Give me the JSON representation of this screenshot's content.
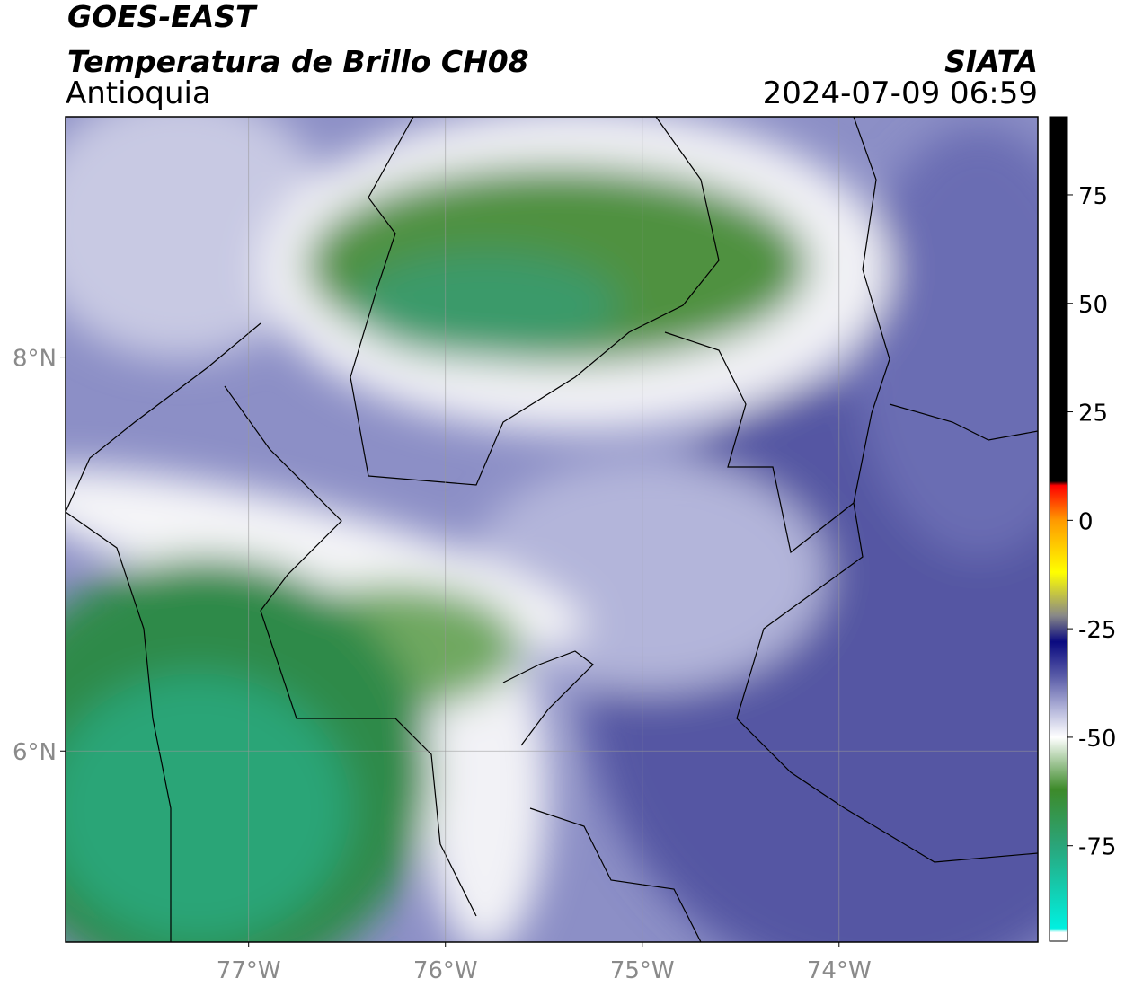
{
  "header": {
    "title": "GOES-EAST",
    "subtitle": "Temperatura de Brillo CH08",
    "region": "Antioquia",
    "source": "SIATA",
    "timestamp": "2024-07-09 06:59"
  },
  "map": {
    "xlim": [
      -77.93,
      -72.99
    ],
    "ylim": [
      5.03,
      9.22
    ],
    "xticks": [
      {
        "value": -77,
        "label": "77°W"
      },
      {
        "value": -76,
        "label": "76°W"
      },
      {
        "value": -75,
        "label": "75°W"
      },
      {
        "value": -74,
        "label": "74°W"
      }
    ],
    "yticks": [
      {
        "value": 6,
        "label": "6°N"
      },
      {
        "value": 8,
        "label": "8°N"
      }
    ],
    "grid": true
  },
  "colorbar": {
    "lim": [
      -97,
      93
    ],
    "ticks": [
      -75,
      -50,
      -25,
      0,
      25,
      50,
      75
    ],
    "stops": [
      {
        "value": -97,
        "color": "#ffffff"
      },
      {
        "value": -95,
        "color": "#ffffff"
      },
      {
        "value": -94,
        "color": "#00f0e0"
      },
      {
        "value": -75,
        "color": "#2aa57a"
      },
      {
        "value": -62,
        "color": "#3d8a2a"
      },
      {
        "value": -50,
        "color": "#ffffff"
      },
      {
        "value": -44,
        "color": "#b9bbdd"
      },
      {
        "value": -36,
        "color": "#5a5ca8"
      },
      {
        "value": -28,
        "color": "#0a0a80"
      },
      {
        "value": -22,
        "color": "#888888"
      },
      {
        "value": -12,
        "color": "#ffff00"
      },
      {
        "value": 0,
        "color": "#ff9900"
      },
      {
        "value": 8,
        "color": "#ff0000"
      },
      {
        "value": 9,
        "color": "#000000"
      },
      {
        "value": 93,
        "color": "#000000"
      }
    ]
  }
}
